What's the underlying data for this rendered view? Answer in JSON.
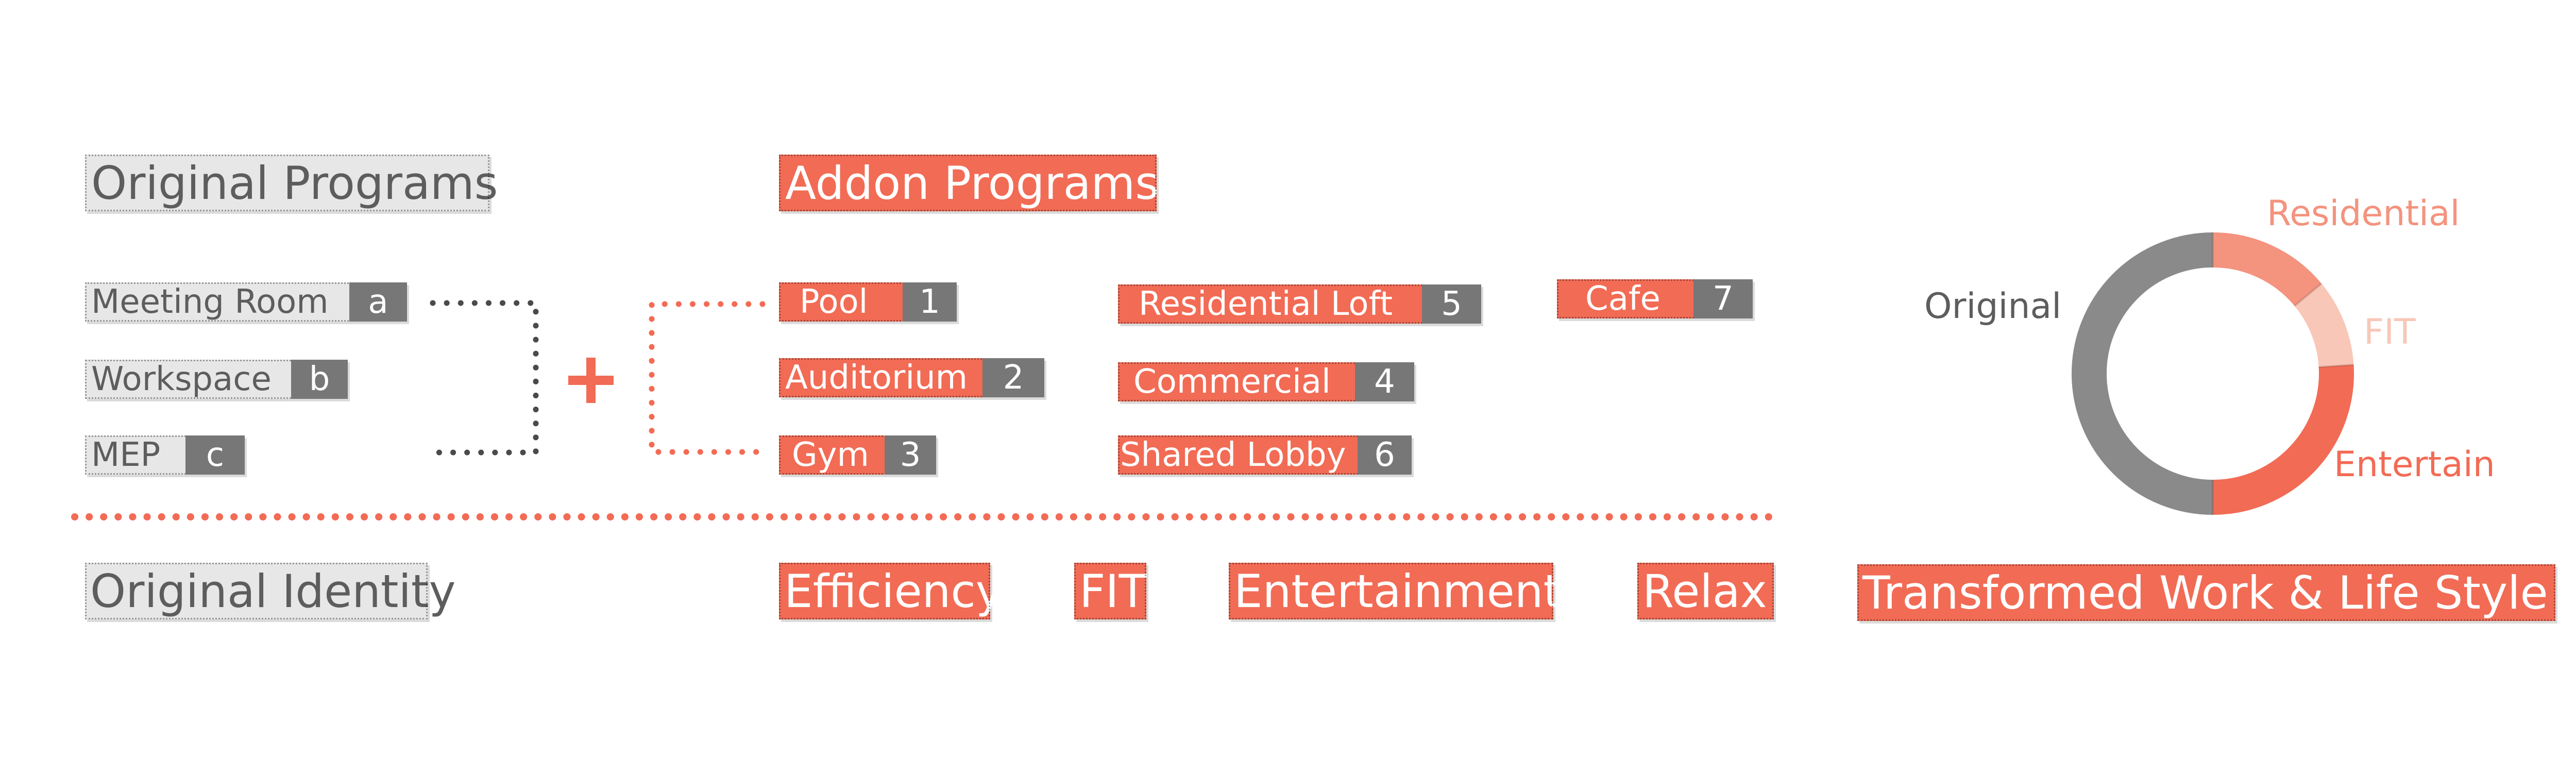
{
  "headings": {
    "original": "Original Programs",
    "addon": "Addon Programs"
  },
  "original_items": [
    {
      "label": "Meeting Room",
      "key": "a"
    },
    {
      "label": "Workspace",
      "key": "b"
    },
    {
      "label": "MEP",
      "key": "c"
    }
  ],
  "plus_symbol": "+",
  "addon_items": [
    {
      "label": "Pool",
      "key": "1"
    },
    {
      "label": "Auditorium",
      "key": "2"
    },
    {
      "label": "Gym",
      "key": "3"
    },
    {
      "label": "Commercial",
      "key": "4"
    },
    {
      "label": "Residential Loft",
      "key": "5"
    },
    {
      "label": "Shared Lobby",
      "key": "6"
    },
    {
      "label": "Cafe",
      "key": "7"
    }
  ],
  "identities": {
    "original": "Original Identity",
    "added": [
      "Efficiency",
      "FIT",
      "Entertainment",
      "Relax"
    ],
    "result": "Transformed Work & Life Style"
  },
  "chart_data": {
    "type": "pie",
    "style": "donut",
    "slices": [
      {
        "label": "Residential",
        "value": 14,
        "color": "#f4937e"
      },
      {
        "label": "FIT",
        "value": 10,
        "color": "#f8c7b8"
      },
      {
        "label": "Entertain",
        "value": 26,
        "color": "#f26b55"
      },
      {
        "label": "Original",
        "value": 50,
        "color": "#8a8a8a"
      }
    ]
  },
  "colors": {
    "accent": "#f26b55",
    "grey": "#777777",
    "light_grey": "#e7e7e7",
    "text_grey": "#5d5d5d"
  }
}
